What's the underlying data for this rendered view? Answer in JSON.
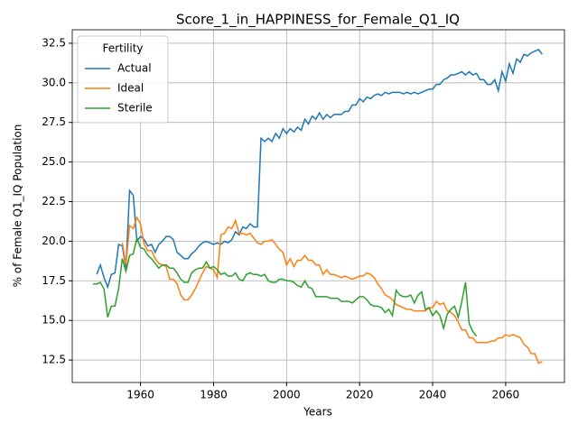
{
  "chart_data": {
    "type": "line",
    "title": "Score_1_in_HAPPINESS_for_Female_Q1_IQ",
    "x_label": "Years",
    "y_label": "% of Female Q1_IQ Population",
    "legend_title": "Fertility",
    "legend_position": "upper left",
    "grid": true,
    "xlim": [
      1941.3,
      2076.1
    ],
    "ylim": [
      11.08,
      33.35
    ],
    "xticks": [
      1960,
      1980,
      2000,
      2020,
      2040,
      2060
    ],
    "yticks": [
      12.5,
      {
        "value": 15,
        "label": "15.0"
      },
      17.5,
      {
        "value": 20,
        "label": "20.0"
      },
      22.5,
      {
        "value": 25,
        "label": "25.0"
      },
      27.5,
      {
        "value": 30,
        "label": "30.0"
      },
      32.5
    ],
    "x": [
      1947,
      1948,
      1949,
      1950,
      1951,
      1952,
      1953,
      1954,
      1955,
      1956,
      1957,
      1958,
      1959,
      1960,
      1961,
      1962,
      1963,
      1964,
      1965,
      1966,
      1967,
      1968,
      1969,
      1970,
      1971,
      1972,
      1973,
      1974,
      1975,
      1976,
      1977,
      1978,
      1979,
      1980,
      1981,
      1982,
      1983,
      1984,
      1985,
      1986,
      1987,
      1988,
      1989,
      1990,
      1991,
      1992,
      1993,
      1994,
      1995,
      1996,
      1997,
      1998,
      1999,
      2000,
      2001,
      2002,
      2003,
      2004,
      2005,
      2006,
      2007,
      2008,
      2009,
      2010,
      2011,
      2012,
      2013,
      2014,
      2015,
      2016,
      2017,
      2018,
      2019,
      2020,
      2021,
      2022,
      2023,
      2024,
      2025,
      2026,
      2027,
      2028,
      2029,
      2030,
      2031,
      2032,
      2033,
      2034,
      2035,
      2036,
      2037,
      2038,
      2039,
      2040,
      2041,
      2042,
      2043,
      2044,
      2045,
      2046,
      2047,
      2048,
      2049,
      2050,
      2051,
      2052,
      2053,
      2054,
      2055,
      2056,
      2057,
      2058,
      2059,
      2060,
      2061,
      2062,
      2063,
      2064,
      2065,
      2066,
      2067,
      2068,
      2069,
      2070
    ],
    "series": [
      {
        "name": "Actual",
        "color": "#1f77b4",
        "values": [
          null,
          17.9,
          18.5,
          17.7,
          17.1,
          17.9,
          18.0,
          19.8,
          19.7,
          18.3,
          23.2,
          22.9,
          20.0,
          20.3,
          20.1,
          19.7,
          19.8,
          19.3,
          19.8,
          20.0,
          20.3,
          20.3,
          20.1,
          19.3,
          19.1,
          18.9,
          18.9,
          19.2,
          19.4,
          19.7,
          19.9,
          20.0,
          19.9,
          19.8,
          19.9,
          19.8,
          20.0,
          19.9,
          20.1,
          20.6,
          20.4,
          20.9,
          20.8,
          21.1,
          20.9,
          20.9,
          26.5,
          26.3,
          26.5,
          26.3,
          26.8,
          26.5,
          27.1,
          26.8,
          27.1,
          26.9,
          27.2,
          27.0,
          27.7,
          27.4,
          27.9,
          27.7,
          28.1,
          27.7,
          28.0,
          27.8,
          28.0,
          28.0,
          28.0,
          28.2,
          28.2,
          28.6,
          28.6,
          29.0,
          28.8,
          29.1,
          29.0,
          29.2,
          29.3,
          29.2,
          29.4,
          29.3,
          29.4,
          29.4,
          29.4,
          29.3,
          29.4,
          29.3,
          29.4,
          29.3,
          29.4,
          29.5,
          29.6,
          29.6,
          29.9,
          29.9,
          30.2,
          30.3,
          30.5,
          30.5,
          30.6,
          30.7,
          30.5,
          30.7,
          30.5,
          30.6,
          30.2,
          30.2,
          29.9,
          29.9,
          30.2,
          29.5,
          30.7,
          30.1,
          31.2,
          30.6,
          31.5,
          31.3,
          31.8,
          31.7,
          31.9,
          32.0,
          32.1,
          31.8
        ]
      },
      {
        "name": "Ideal",
        "color": "#ff7f0e",
        "values": [
          null,
          null,
          null,
          null,
          null,
          null,
          null,
          null,
          19.9,
          18.5,
          21.0,
          20.8,
          21.5,
          21.1,
          19.8,
          19.4,
          19.4,
          18.9,
          18.6,
          18.5,
          18.4,
          17.6,
          17.6,
          17.3,
          16.6,
          16.3,
          16.3,
          16.6,
          17.0,
          17.5,
          18.0,
          18.4,
          18.3,
          18.2,
          17.7,
          20.4,
          20.5,
          20.9,
          20.8,
          21.3,
          20.5,
          20.5,
          20.4,
          20.5,
          20.2,
          19.9,
          19.8,
          20.0,
          20.0,
          20.1,
          19.8,
          19.5,
          19.3,
          18.5,
          18.9,
          18.4,
          18.8,
          18.8,
          19.1,
          18.8,
          18.8,
          18.5,
          18.5,
          17.9,
          18.2,
          17.9,
          17.9,
          17.8,
          17.7,
          17.8,
          17.7,
          17.6,
          17.7,
          17.8,
          17.8,
          18.0,
          17.9,
          17.7,
          17.3,
          17.0,
          16.6,
          16.5,
          16.3,
          16.0,
          15.9,
          15.8,
          15.7,
          15.7,
          15.6,
          15.6,
          15.6,
          15.6,
          15.8,
          15.8,
          16.2,
          16.0,
          16.1,
          15.6,
          15.5,
          15.3,
          14.9,
          14.4,
          14.4,
          13.9,
          13.9,
          13.6,
          13.6,
          13.6,
          13.6,
          13.7,
          13.7,
          13.9,
          13.9,
          14.1,
          14.0,
          14.1,
          14.0,
          13.9,
          13.5,
          13.3,
          12.9,
          12.9,
          12.3,
          12.4
        ]
      },
      {
        "name": "Sterile",
        "color": "#2ca02c",
        "values": [
          17.3,
          17.3,
          17.4,
          17.0,
          15.2,
          15.9,
          15.9,
          17.0,
          18.9,
          18.1,
          19.1,
          19.2,
          20.2,
          19.6,
          19.5,
          19.1,
          18.9,
          18.6,
          18.3,
          18.5,
          18.5,
          18.3,
          18.3,
          18.0,
          17.6,
          17.4,
          17.4,
          18.0,
          18.2,
          18.3,
          18.3,
          18.7,
          18.3,
          18.4,
          18.2,
          17.9,
          18.0,
          17.8,
          17.8,
          18.0,
          17.6,
          17.5,
          17.9,
          18.0,
          17.9,
          17.9,
          17.8,
          17.9,
          17.5,
          17.4,
          17.4,
          17.6,
          17.6,
          17.5,
          17.5,
          17.4,
          17.2,
          17.1,
          17.5,
          17.1,
          17.0,
          16.5,
          16.5,
          16.5,
          16.5,
          16.4,
          16.4,
          16.4,
          16.2,
          16.2,
          16.2,
          16.1,
          16.3,
          16.5,
          16.5,
          16.3,
          16.0,
          15.9,
          15.9,
          15.8,
          15.5,
          15.7,
          15.3,
          16.9,
          16.6,
          16.5,
          16.5,
          16.6,
          16.1,
          16.6,
          16.8,
          15.7,
          15.8,
          15.3,
          15.6,
          15.3,
          14.5,
          15.4,
          15.7,
          15.9,
          15.2,
          16.2,
          17.4,
          14.8,
          14.3,
          14.0,
          null,
          null,
          null,
          null,
          null,
          null,
          null,
          null,
          null,
          null,
          null,
          null,
          null,
          null,
          null,
          null,
          null,
          null
        ]
      }
    ]
  }
}
